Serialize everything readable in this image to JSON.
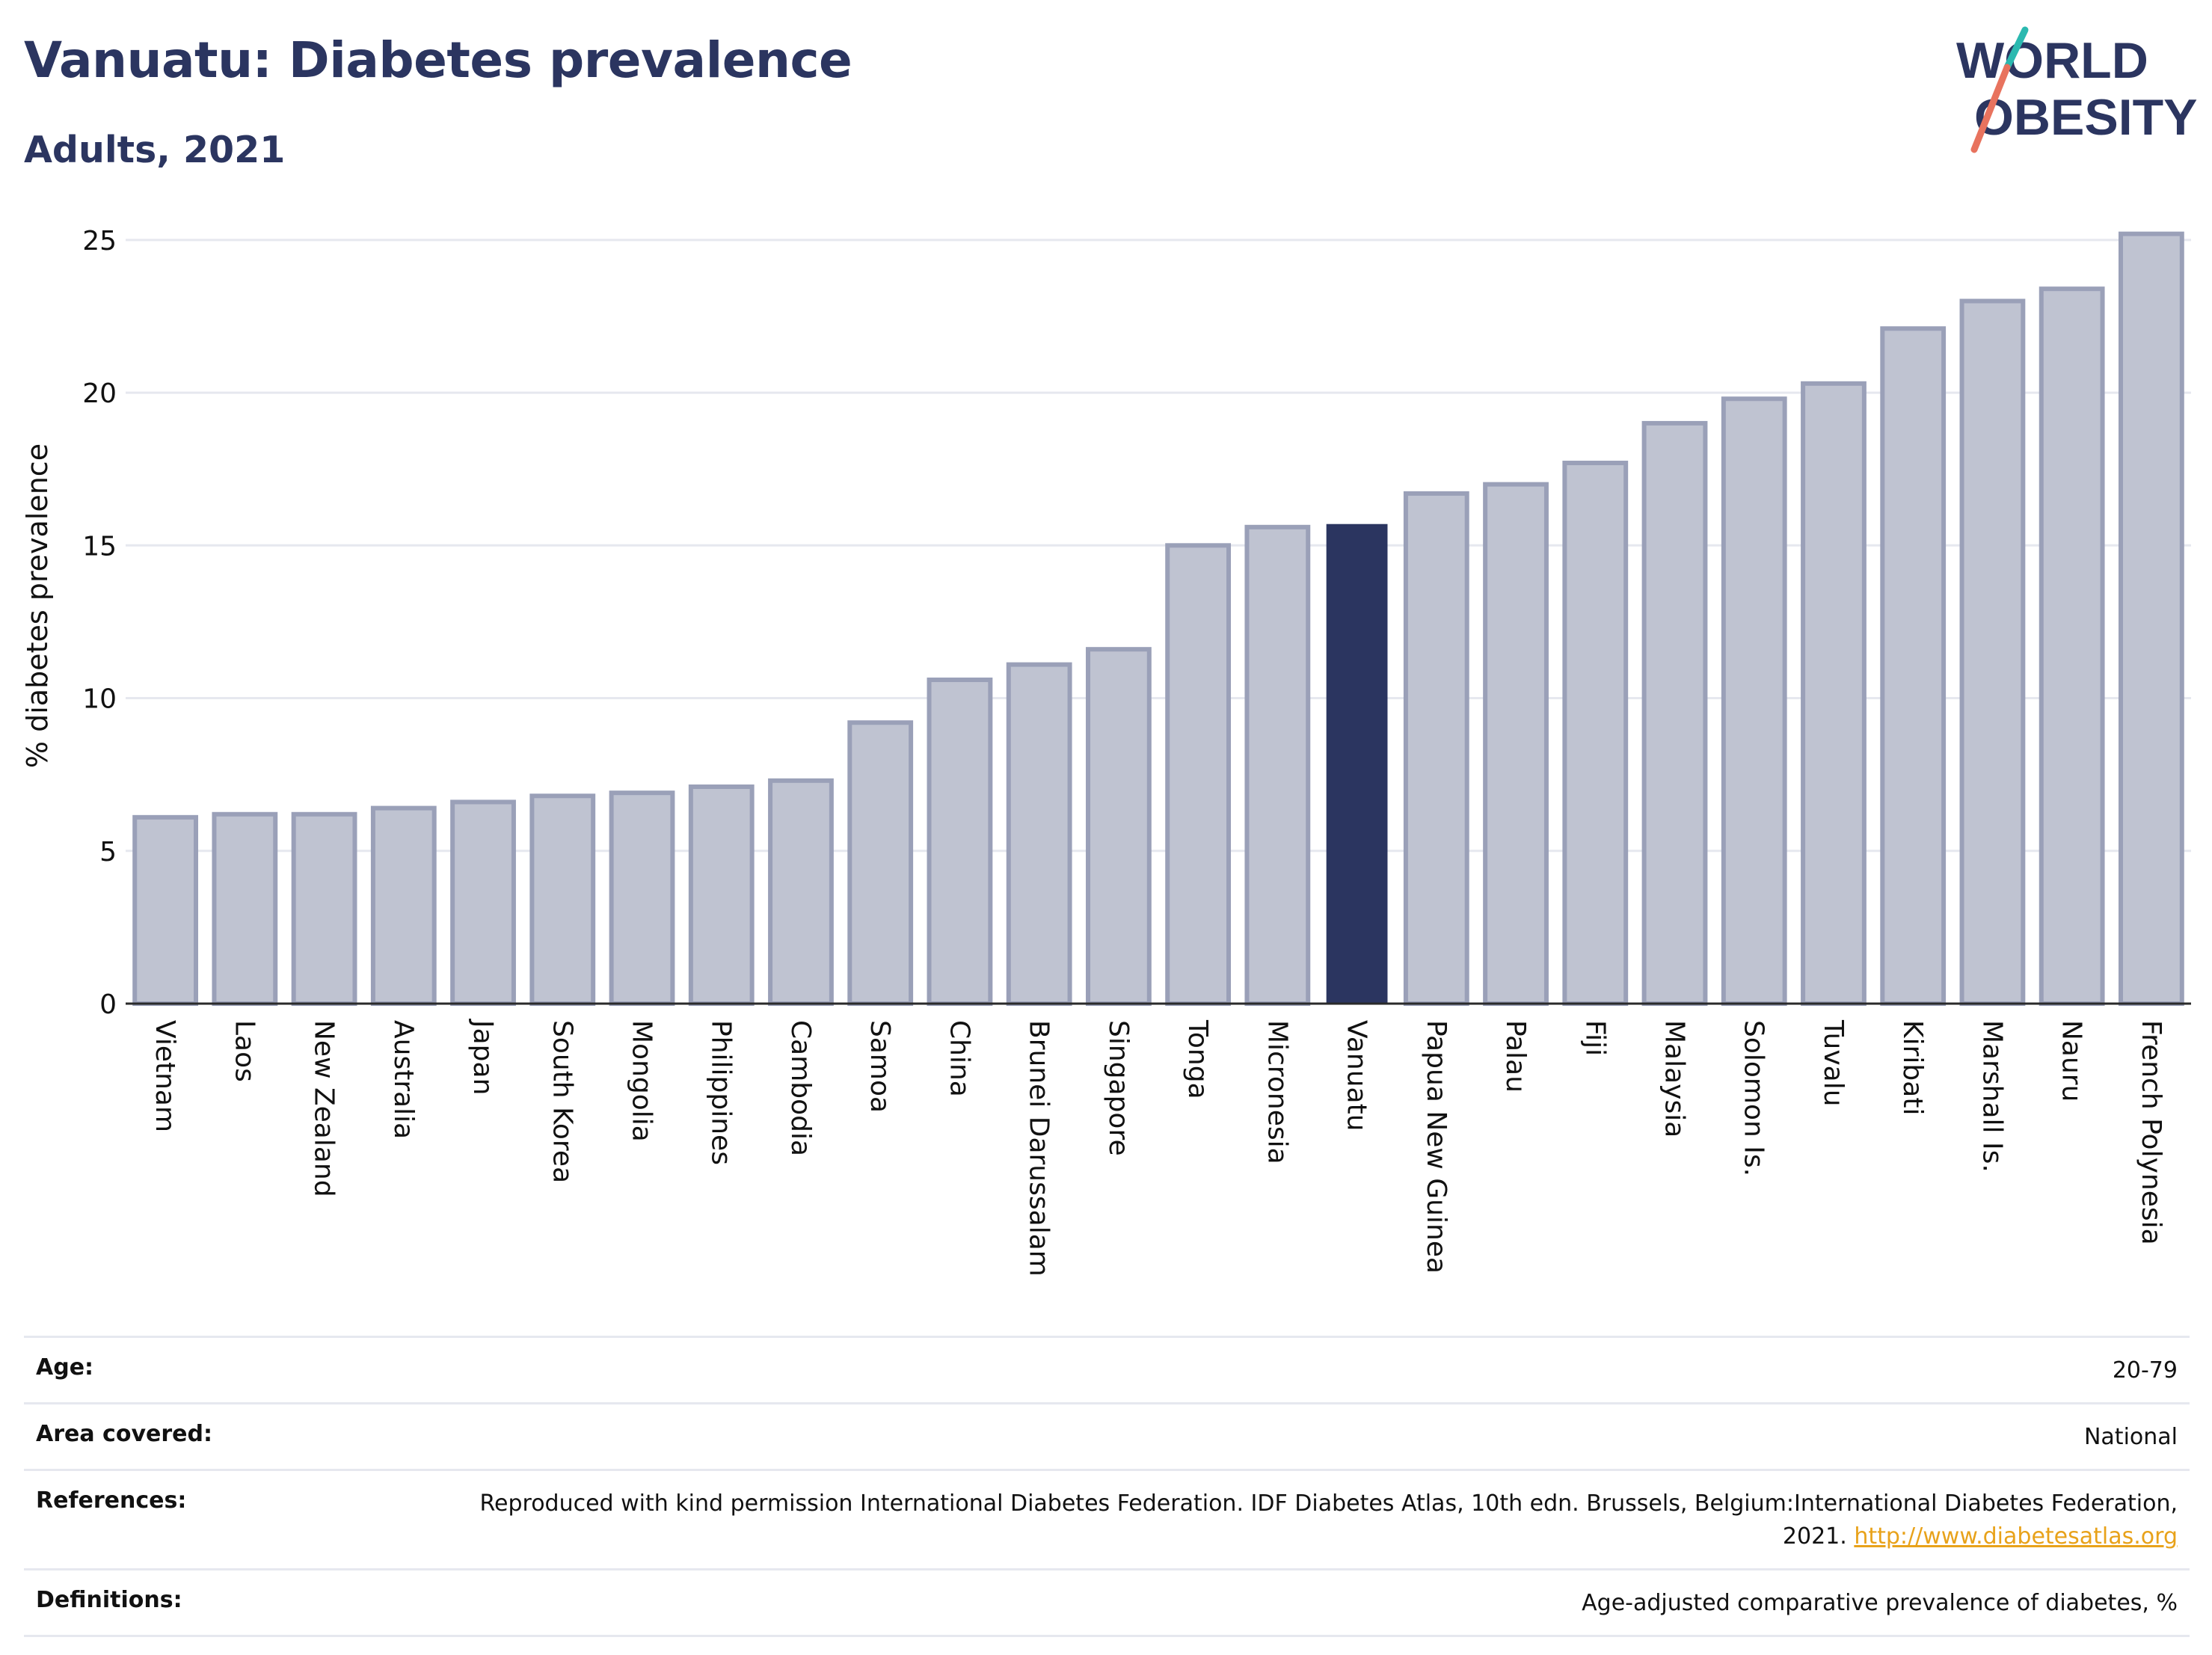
{
  "header": {
    "title": "Vanuatu: Diabetes prevalence",
    "subtitle": "Adults, 2021"
  },
  "logo": {
    "line1": "WORLD",
    "line2": "OBESITY",
    "colors": {
      "text": "#2b3560",
      "slash_teal": "#2bb9b0",
      "slash_coral": "#e8735e"
    }
  },
  "chart_data": {
    "type": "bar",
    "ylabel": "% diabetes prevalence",
    "xlabel": "",
    "ylim": [
      0,
      26
    ],
    "yticks": [
      0,
      5,
      10,
      15,
      20,
      25
    ],
    "grid": true,
    "highlight": "Vanuatu",
    "colors": {
      "bar": "#bfc3d1",
      "bar_border": "#9aa0b8",
      "highlight": "#2b3560"
    },
    "categories": [
      "Vietnam",
      "Laos",
      "New Zealand",
      "Australia",
      "Japan",
      "South Korea",
      "Mongolia",
      "Philippines",
      "Cambodia",
      "Samoa",
      "China",
      "Brunei Darussalam",
      "Singapore",
      "Tonga",
      "Micronesia",
      "Vanuatu",
      "Papua New Guinea",
      "Palau",
      "Fiji",
      "Malaysia",
      "Solomon Is.",
      "Tuvalu",
      "Kiribati",
      "Marshall Is.",
      "Nauru",
      "French Polynesia"
    ],
    "values": [
      6.1,
      6.2,
      6.2,
      6.4,
      6.6,
      6.8,
      6.9,
      7.1,
      7.3,
      9.2,
      10.6,
      11.1,
      11.6,
      15.0,
      15.6,
      15.7,
      16.7,
      17.0,
      17.7,
      19.0,
      19.8,
      20.3,
      22.1,
      23.0,
      23.4,
      25.2
    ]
  },
  "meta": [
    {
      "key": "Age:",
      "value": "20-79"
    },
    {
      "key": "Area covered:",
      "value": "National"
    },
    {
      "key": "References:",
      "value": "Reproduced with kind permission International Diabetes Federation.  IDF Diabetes Atlas, 10th edn. Brussels, Belgium:International Diabetes Federation, 2021.",
      "link": "http://www.diabetesatlas.org"
    },
    {
      "key": "Definitions:",
      "value": "Age-adjusted comparative prevalence of diabetes, %"
    }
  ]
}
